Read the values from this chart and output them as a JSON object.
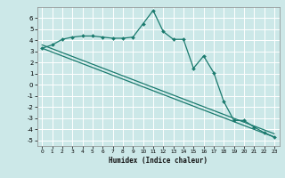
{
  "xlabel": "Humidex (Indice chaleur)",
  "background_color": "#cce8e8",
  "line_color": "#1a7a6e",
  "grid_color": "#ffffff",
  "xlim": [
    -0.5,
    23.5
  ],
  "ylim": [
    -5.5,
    7.0
  ],
  "xticks": [
    0,
    1,
    2,
    3,
    4,
    5,
    6,
    7,
    8,
    9,
    10,
    11,
    12,
    13,
    14,
    15,
    16,
    17,
    18,
    19,
    20,
    21,
    22,
    23
  ],
  "yticks": [
    -5,
    -4,
    -3,
    -2,
    -1,
    0,
    1,
    2,
    3,
    4,
    5,
    6
  ],
  "series1_x": [
    0,
    1,
    2,
    3,
    4,
    5,
    6,
    7,
    8,
    9,
    10,
    11,
    12,
    13,
    14,
    15,
    16,
    17,
    18,
    19,
    20,
    21,
    22,
    23
  ],
  "series1_y": [
    3.3,
    3.6,
    4.1,
    4.3,
    4.4,
    4.4,
    4.3,
    4.2,
    4.2,
    4.3,
    5.5,
    6.7,
    4.8,
    4.1,
    4.1,
    1.5,
    2.6,
    1.1,
    -1.5,
    -3.2,
    -3.2,
    -3.8,
    -4.3,
    -4.7
  ],
  "series2_x": [
    0,
    23
  ],
  "series2_y": [
    3.3,
    -4.7
  ],
  "series3_x": [
    0,
    23
  ],
  "series3_y": [
    3.6,
    -4.4
  ]
}
